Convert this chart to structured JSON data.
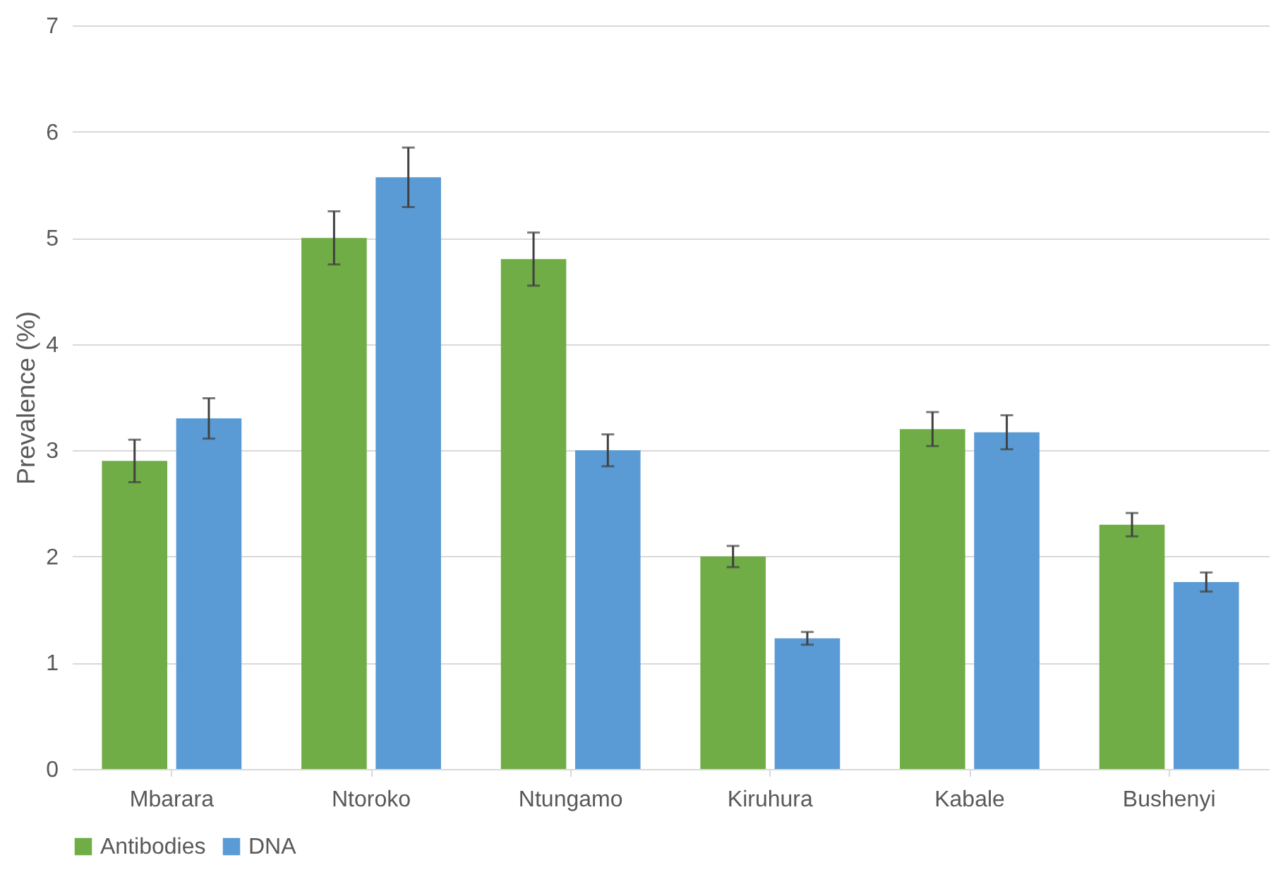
{
  "chart_data": {
    "type": "bar",
    "ylabel": "Prevalence (%)",
    "categories": [
      "Mbarara",
      "Ntoroko",
      "Ntungamo",
      "Kiruhura",
      "Kabale",
      "Bushenyi"
    ],
    "series": [
      {
        "name": "Antibodies",
        "color": "#70ad47",
        "values": [
          2.9,
          5.0,
          4.8,
          2.0,
          3.2,
          2.3
        ],
        "errors": [
          0.2,
          0.25,
          0.25,
          0.1,
          0.16,
          0.11
        ]
      },
      {
        "name": "DNA",
        "color": "#5b9bd5",
        "values": [
          3.3,
          5.57,
          3.0,
          1.23,
          3.17,
          1.76
        ],
        "errors": [
          0.19,
          0.28,
          0.15,
          0.06,
          0.16,
          0.09
        ]
      }
    ],
    "ylim": [
      0,
      7
    ],
    "yticks": [
      0,
      1,
      2,
      3,
      4,
      5,
      6,
      7
    ],
    "grid": "y",
    "legend": "bottom"
  }
}
